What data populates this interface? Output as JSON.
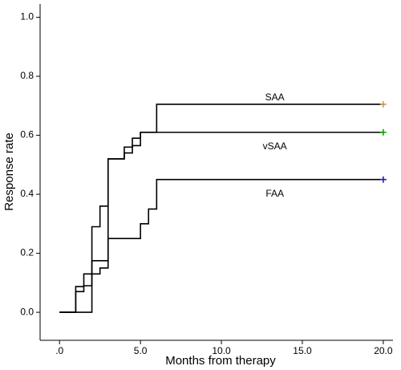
{
  "chart_data": {
    "type": "step",
    "x_label": "Months from therapy",
    "y_label": "Response rate",
    "xlim": [
      -1.2,
      20.6
    ],
    "ylim": [
      -0.095,
      1.045
    ],
    "xticks": [
      {
        "value": 0,
        "label": ".0"
      },
      {
        "value": 5,
        "label": "5.0"
      },
      {
        "value": 10,
        "label": "10.0"
      },
      {
        "value": 15,
        "label": "15.0"
      },
      {
        "value": 20,
        "label": "20.0"
      }
    ],
    "yticks": [
      {
        "value": 0,
        "label": "0.0"
      },
      {
        "value": 0.2,
        "label": "0.2"
      },
      {
        "value": 0.4,
        "label": "0.4"
      },
      {
        "value": 0.6,
        "label": "0.6"
      },
      {
        "value": 0.8,
        "label": "0.8"
      },
      {
        "value": 1,
        "label": "1.0"
      }
    ],
    "grid": false,
    "series": [
      {
        "name": "SAA",
        "color": "#c8a050",
        "x": [
          0,
          1.0,
          1.5,
          2.0,
          3.0,
          4.0,
          4.5,
          5.0,
          6.0,
          20.0
        ],
        "values": [
          0,
          0.07,
          0.09,
          0.175,
          0.52,
          0.54,
          0.565,
          0.61,
          0.705,
          0.705
        ]
      },
      {
        "name": "vSAA",
        "color": "#00aa00",
        "x": [
          0,
          1.0,
          1.5,
          2.0,
          2.5,
          3.0,
          4.0,
          4.5,
          5.0,
          20.0
        ],
        "values": [
          0,
          0.087,
          0.13,
          0.29,
          0.36,
          0.52,
          0.56,
          0.59,
          0.61,
          0.61
        ]
      },
      {
        "name": "FAA",
        "color": "#2020c0",
        "x": [
          0,
          2.0,
          2.5,
          3.0,
          5.0,
          5.5,
          6.0,
          20.0
        ],
        "values": [
          0,
          0.13,
          0.15,
          0.25,
          0.3,
          0.35,
          0.45,
          0.45
        ]
      }
    ]
  }
}
